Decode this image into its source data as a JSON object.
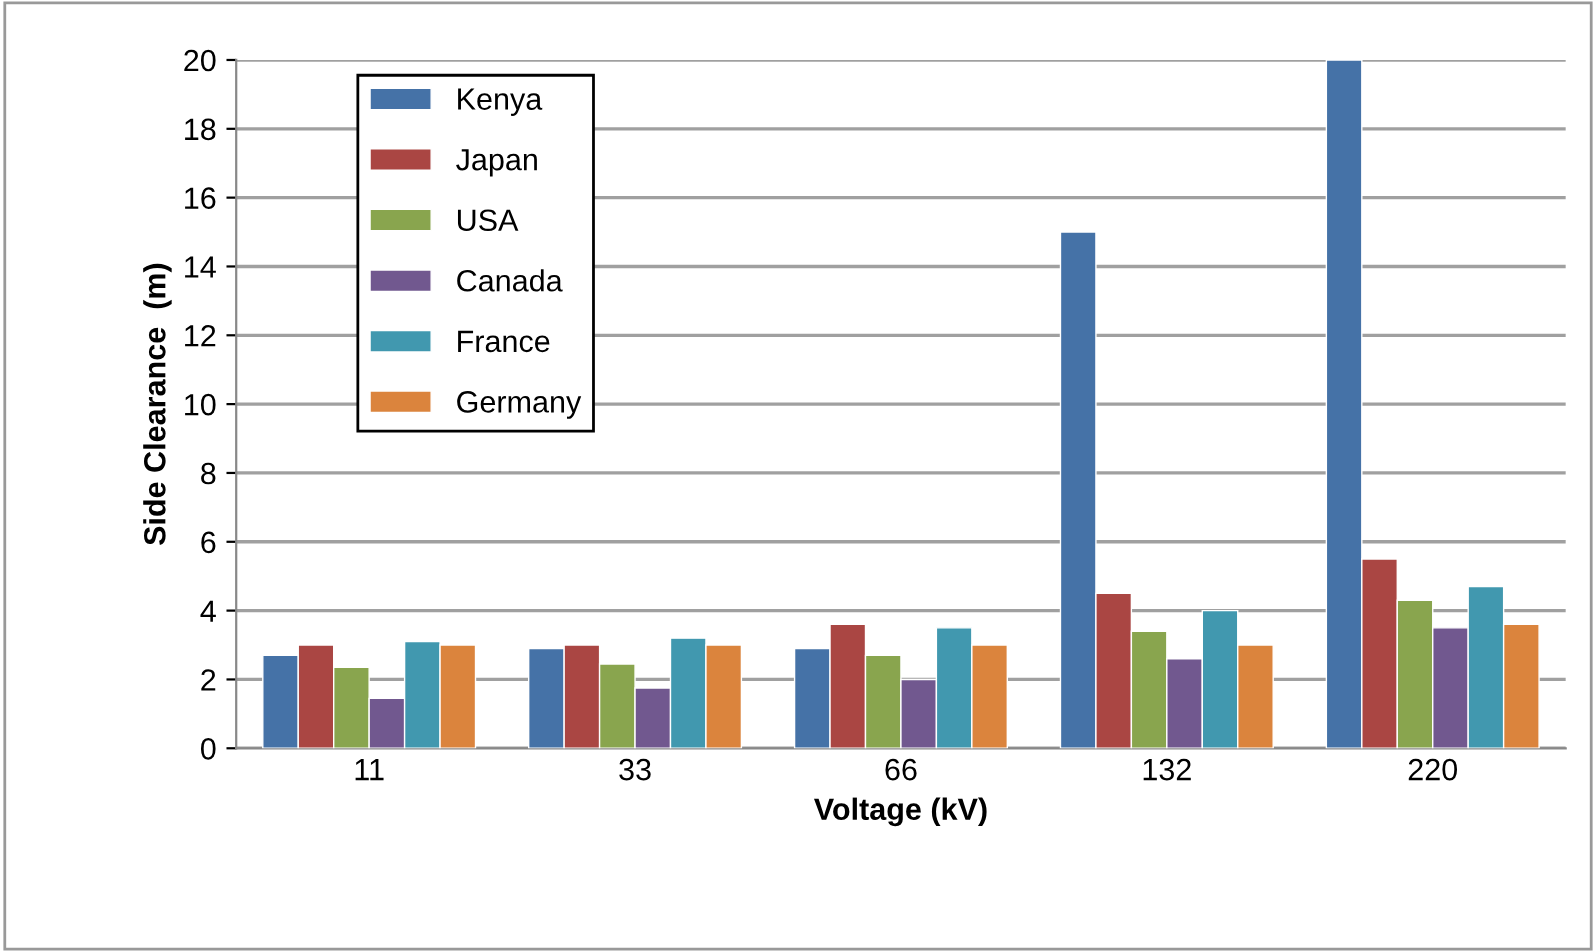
{
  "chart_data": {
    "type": "bar",
    "xlabel": "Voltage (kV)",
    "ylabel": "Side Clearance  (m)",
    "categories": [
      "11",
      "33",
      "66",
      "132",
      "220"
    ],
    "series": [
      {
        "name": "Kenya",
        "color": "#4572a7",
        "values": [
          2.7,
          2.9,
          2.9,
          15,
          20
        ]
      },
      {
        "name": "Japan",
        "color": "#aa4643",
        "values": [
          3.0,
          3.0,
          3.6,
          4.5,
          5.5
        ]
      },
      {
        "name": "USA",
        "color": "#89a54e",
        "values": [
          2.35,
          2.45,
          2.7,
          3.4,
          4.3
        ]
      },
      {
        "name": "Canada",
        "color": "#71588f",
        "values": [
          1.45,
          1.75,
          2.0,
          2.6,
          3.5
        ]
      },
      {
        "name": "France",
        "color": "#4198af",
        "values": [
          3.1,
          3.2,
          3.5,
          4.0,
          4.7
        ]
      },
      {
        "name": "Germany",
        "color": "#db843d",
        "values": [
          3.0,
          3.0,
          3.0,
          3.0,
          3.6
        ]
      }
    ],
    "ylim": [
      0,
      20
    ],
    "yticks": [
      0,
      2,
      4,
      6,
      8,
      10,
      12,
      14,
      16,
      18,
      20
    ],
    "grid": "y",
    "legend": "top left"
  }
}
